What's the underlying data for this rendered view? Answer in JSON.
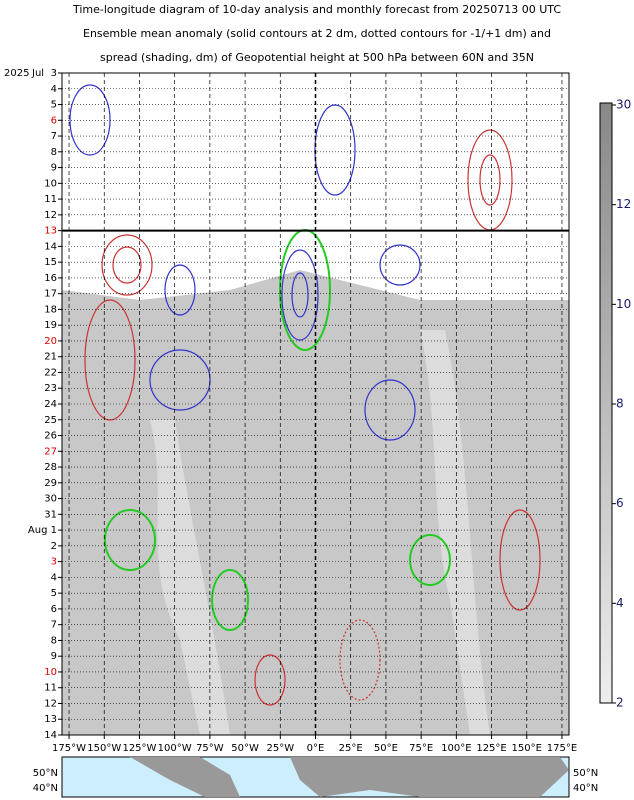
{
  "chart_data": {
    "type": "hovmoller",
    "title": [
      "Time-longitude diagram of 10-day analysis and monthly forecast from 20250713 00 UTC",
      "Ensemble mean anomaly (solid contours at 2 dm, dotted contours for -1/+1 dm) and",
      "spread (shading, dm) of Geopotential height at 500 hPa between 60N and 35N"
    ],
    "year": "2025",
    "month": "Jul",
    "categories": [
      "3",
      "4",
      "5",
      "6",
      "7",
      "8",
      "9",
      "10",
      "11",
      "12",
      "13",
      "14",
      "15",
      "16",
      "17",
      "18",
      "19",
      "20",
      "21",
      "22",
      "23",
      "24",
      "25",
      "26",
      "27",
      "28",
      "29",
      "30",
      "31",
      "Aug 1",
      "2",
      "3",
      "4",
      "5",
      "6",
      "7",
      "8",
      "9",
      "10",
      "11",
      "12",
      "13",
      "14"
    ],
    "highlight_rows": [
      3,
      10,
      17,
      24,
      31,
      38
    ],
    "highlight_color": "#dd0000",
    "analysis_end_row": 10,
    "xlim": [
      -180,
      180
    ],
    "xticks": [
      {
        "value": -175,
        "label": "175°W"
      },
      {
        "value": -150,
        "label": "150°W"
      },
      {
        "value": -125,
        "label": "125°W"
      },
      {
        "value": -100,
        "label": "100°W"
      },
      {
        "value": -75,
        "label": "75°W"
      },
      {
        "value": -50,
        "label": "50°W"
      },
      {
        "value": -25,
        "label": "25°W"
      },
      {
        "value": 0,
        "label": "0°E"
      },
      {
        "value": 25,
        "label": "25°E"
      },
      {
        "value": 50,
        "label": "50°E"
      },
      {
        "value": 75,
        "label": "75°E"
      },
      {
        "value": 100,
        "label": "100°E"
      },
      {
        "value": 125,
        "label": "125°E"
      },
      {
        "value": 150,
        "label": "150°E"
      },
      {
        "value": 175,
        "label": "175°E"
      }
    ],
    "colorbar_ticks": [
      30,
      12,
      10,
      8,
      6,
      4,
      2
    ],
    "map_lat_labels": [
      "50°N",
      "40°N"
    ]
  }
}
